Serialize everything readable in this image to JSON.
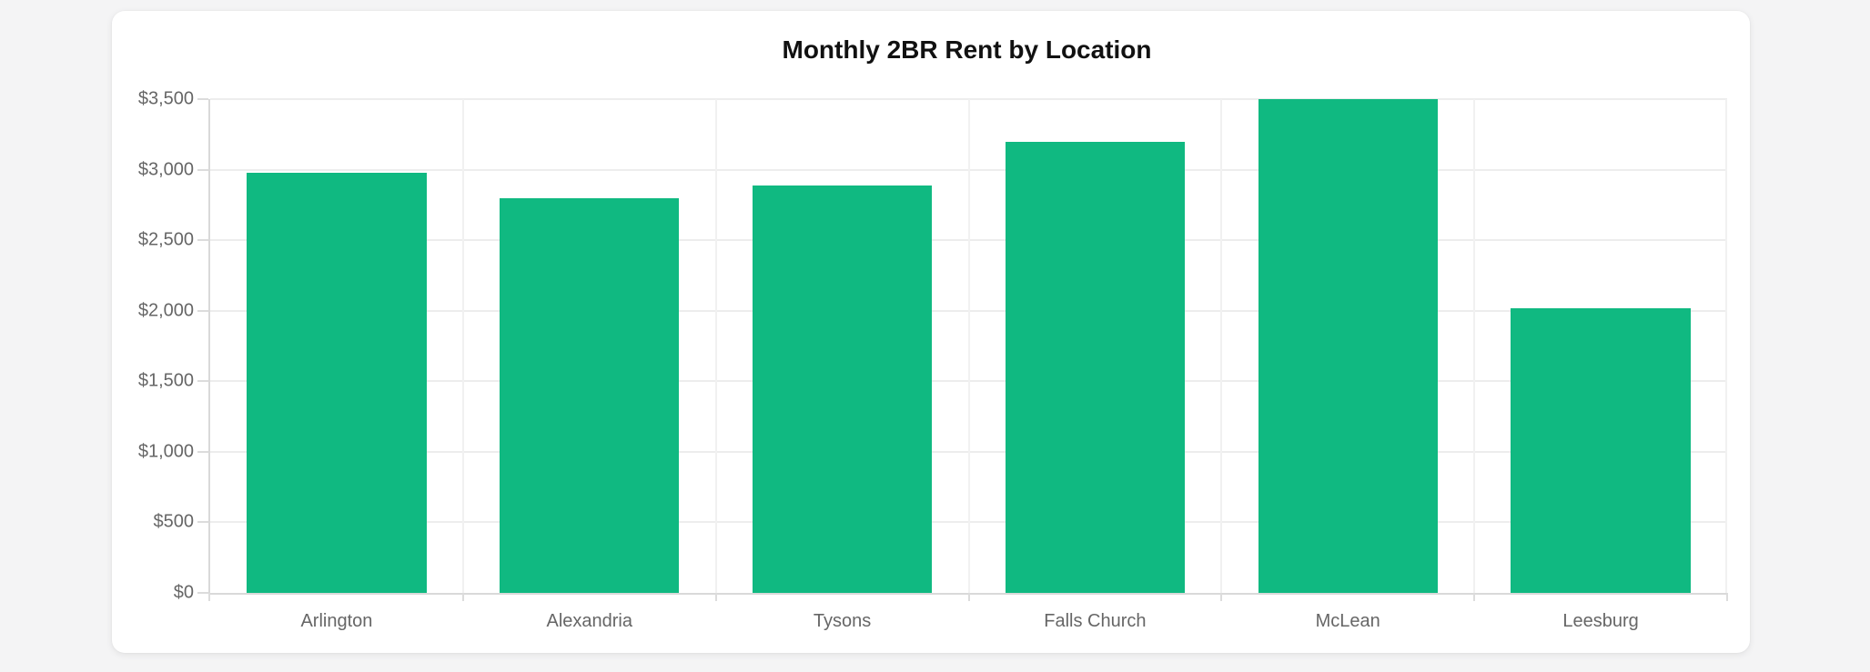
{
  "page": {
    "background_color": "#f4f4f5",
    "card_background_color": "#ffffff"
  },
  "chart_data": {
    "type": "bar",
    "title": "Monthly 2BR Rent by Location",
    "categories": [
      "Arlington",
      "Alexandria",
      "Tysons",
      "Falls Church",
      "McLean",
      "Leesburg"
    ],
    "values": [
      2975,
      2800,
      2890,
      3195,
      3500,
      2015
    ],
    "xlabel": "",
    "ylabel": "",
    "ylim": [
      0,
      3500
    ],
    "y_tick_step": 500,
    "y_tick_labels": [
      "$0",
      "$500",
      "$1,000",
      "$1,500",
      "$2,000",
      "$2,500",
      "$3,000",
      "$3,500"
    ],
    "grid": true,
    "legend_position": "none",
    "bar_color": "#10b981",
    "title_color": "#111111",
    "tick_label_color": "#666666",
    "grid_color": "#ededed",
    "axis_color": "#d9d9d9"
  }
}
